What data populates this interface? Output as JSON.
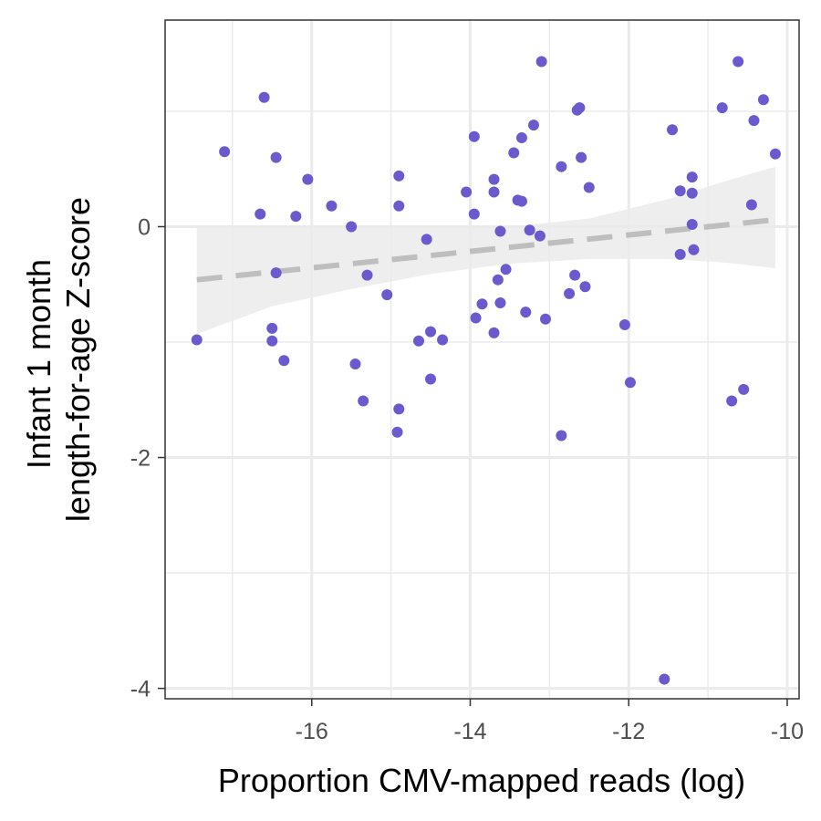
{
  "chart_data": {
    "type": "scatter",
    "xlabel": "Proportion CMV-mapped reads (log)",
    "ylabel_lines": [
      "Infant 1 month",
      "length-for-age Z-score"
    ],
    "xlim": [
      -17.85,
      -9.85
    ],
    "ylim": [
      -4.09,
      1.79
    ],
    "xticks": [
      -16,
      -14,
      -12,
      -10
    ],
    "yticks": [
      -4,
      -2,
      0
    ],
    "x_minor_grid": [
      -17,
      -15,
      -13,
      -11
    ],
    "y_minor_grid": [
      -3,
      -1,
      1
    ],
    "grid": true,
    "colors": {
      "points": "#6a5acd",
      "trend_line": "#bebebe",
      "ribbon": "#ebebeb",
      "grid": "#ebebeb",
      "panel_border": "#333333"
    },
    "trend": {
      "style": "dashed",
      "x": [
        -17.45,
        -10.15
      ],
      "y": [
        -0.46,
        0.06
      ],
      "ci_x": [
        -17.45,
        -16.5,
        -15.5,
        -14.5,
        -13.5,
        -12.5,
        -11.5,
        -10.8,
        -10.15
      ],
      "ci_upper": [
        0.0,
        0.0,
        0.0,
        0.0,
        0.0,
        0.07,
        0.24,
        0.39,
        0.52
      ],
      "ci_lower": [
        -0.93,
        -0.69,
        -0.54,
        -0.41,
        -0.32,
        -0.28,
        -0.28,
        -0.31,
        -0.36
      ]
    },
    "points": [
      [
        -17.45,
        -0.98
      ],
      [
        -17.1,
        0.65
      ],
      [
        -16.6,
        1.12
      ],
      [
        -16.65,
        0.11
      ],
      [
        -16.45,
        0.6
      ],
      [
        -16.45,
        -0.4
      ],
      [
        -16.5,
        -0.88
      ],
      [
        -16.5,
        -0.99
      ],
      [
        -16.35,
        -1.16
      ],
      [
        -16.2,
        0.09
      ],
      [
        -16.05,
        0.41
      ],
      [
        -15.75,
        0.18
      ],
      [
        -15.5,
        0.0
      ],
      [
        -15.45,
        -1.19
      ],
      [
        -15.3,
        -0.42
      ],
      [
        -15.35,
        -1.51
      ],
      [
        -15.05,
        -0.59
      ],
      [
        -14.9,
        0.44
      ],
      [
        -14.9,
        0.18
      ],
      [
        -14.9,
        -1.58
      ],
      [
        -14.92,
        -1.78
      ],
      [
        -14.65,
        -0.99
      ],
      [
        -14.55,
        -0.11
      ],
      [
        -14.5,
        -0.91
      ],
      [
        -14.35,
        -0.98
      ],
      [
        -14.5,
        -1.32
      ],
      [
        -14.05,
        0.3
      ],
      [
        -13.95,
        0.78
      ],
      [
        -13.95,
        0.11
      ],
      [
        -13.93,
        -0.79
      ],
      [
        -13.85,
        -0.67
      ],
      [
        -13.7,
        0.41
      ],
      [
        -13.7,
        0.3
      ],
      [
        -13.65,
        -0.46
      ],
      [
        -13.62,
        -0.04
      ],
      [
        -13.62,
        -0.66
      ],
      [
        -13.55,
        -0.37
      ],
      [
        -13.7,
        -0.92
      ],
      [
        -13.45,
        0.64
      ],
      [
        -13.4,
        0.23
      ],
      [
        -13.35,
        0.22
      ],
      [
        -13.35,
        0.77
      ],
      [
        -13.3,
        -0.74
      ],
      [
        -13.25,
        -0.03
      ],
      [
        -13.2,
        0.88
      ],
      [
        -13.12,
        -0.08
      ],
      [
        -13.1,
        1.43
      ],
      [
        -13.05,
        -0.8
      ],
      [
        -12.85,
        0.52
      ],
      [
        -12.85,
        -1.81
      ],
      [
        -12.75,
        -0.58
      ],
      [
        -12.65,
        1.01
      ],
      [
        -12.62,
        1.03
      ],
      [
        -12.6,
        0.6
      ],
      [
        -12.68,
        -0.42
      ],
      [
        -12.55,
        -0.52
      ],
      [
        -12.5,
        0.34
      ],
      [
        -12.05,
        -0.85
      ],
      [
        -11.98,
        -1.35
      ],
      [
        -11.55,
        -3.92
      ],
      [
        -11.45,
        0.84
      ],
      [
        -11.35,
        0.31
      ],
      [
        -11.35,
        -0.24
      ],
      [
        -11.2,
        0.43
      ],
      [
        -11.2,
        0.29
      ],
      [
        -11.2,
        0.02
      ],
      [
        -11.18,
        -0.2
      ],
      [
        -10.82,
        1.03
      ],
      [
        -10.7,
        -1.51
      ],
      [
        -10.62,
        1.43
      ],
      [
        -10.55,
        -1.41
      ],
      [
        -10.45,
        0.19
      ],
      [
        -10.42,
        0.92
      ],
      [
        -10.3,
        1.1
      ],
      [
        -10.15,
        0.63
      ]
    ]
  }
}
